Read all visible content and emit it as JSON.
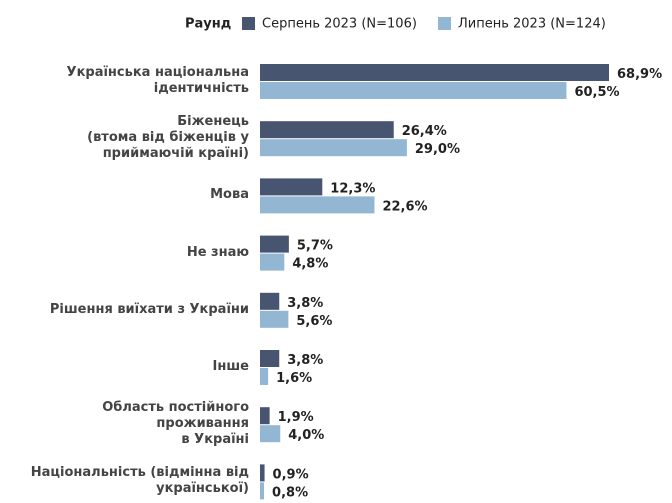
{
  "chart_data": {
    "type": "bar",
    "orientation": "horizontal",
    "legend_title": "Раунд",
    "categories": [
      "Українська національна\nідентичність",
      "Біженець\n(втома від біженців у\nприймаючій країні)",
      "Мова",
      "Не знаю",
      "Рішення виїхати з України",
      "Інше",
      "Область постійного\nпроживання\nв Україні",
      "Національність (відмінна від\nукраїнської)"
    ],
    "series": [
      {
        "name": "Серпень 2023 (N=106)",
        "color": "#475570",
        "values": [
          68.9,
          26.4,
          12.3,
          5.7,
          3.8,
          3.8,
          1.9,
          0.9
        ],
        "value_labels": [
          "68,9%",
          "26,4%",
          "12,3%",
          "5,7%",
          "3,8%",
          "3,8%",
          "1,9%",
          "0,9%"
        ]
      },
      {
        "name": "Липень 2023 (N=124)",
        "color": "#93b7d3",
        "values": [
          60.5,
          29.0,
          22.6,
          4.8,
          5.6,
          1.6,
          4.0,
          0.8
        ],
        "value_labels": [
          "60,5%",
          "29,0%",
          "22,6%",
          "4,8%",
          "5,6%",
          "1,6%",
          "4,0%",
          "0,8%"
        ]
      }
    ]
  }
}
